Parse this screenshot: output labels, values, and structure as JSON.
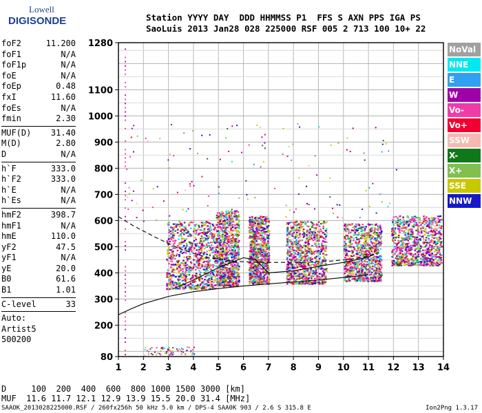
{
  "logo": {
    "line1": "Lowell",
    "line2": "DIGISONDE"
  },
  "header": {
    "labels": "Station YYYY DAY  DDD HHMMSS P1  FFS S AXN PPS IGA PS",
    "values": "SaoLuis 2013 Jan28 028 225000 RSF 005 2 713 100 10+ 22"
  },
  "params": {
    "group1": [
      {
        "name": "foF2",
        "value": "11.200"
      },
      {
        "name": "foF1",
        "value": "N/A"
      },
      {
        "name": "foF1p",
        "value": "N/A"
      },
      {
        "name": "foE",
        "value": "N/A"
      },
      {
        "name": "foEp",
        "value": "0.48"
      },
      {
        "name": "fxI",
        "value": "11.60"
      },
      {
        "name": "foEs",
        "value": "N/A"
      },
      {
        "name": "fmin",
        "value": "2.30"
      }
    ],
    "group2": [
      {
        "name": "MUF(D)",
        "value": "31.40"
      },
      {
        "name": "M(D)",
        "value": "2.80"
      },
      {
        "name": "D",
        "value": "N/A"
      }
    ],
    "group3": [
      {
        "name": "h`F",
        "value": "333.0"
      },
      {
        "name": "h`F2",
        "value": "333.0"
      },
      {
        "name": "h`E",
        "value": "N/A"
      },
      {
        "name": "h`Es",
        "value": "N/A"
      }
    ],
    "group4": [
      {
        "name": "hmF2",
        "value": "398.7"
      },
      {
        "name": "hmF1",
        "value": "N/A"
      },
      {
        "name": "hmE",
        "value": "110.0"
      },
      {
        "name": "yF2",
        "value": "47.5"
      },
      {
        "name": "yF1",
        "value": "N/A"
      },
      {
        "name": "yE",
        "value": "20.0"
      },
      {
        "name": "B0",
        "value": "61.6"
      },
      {
        "name": "B1",
        "value": "1.01"
      }
    ],
    "group5": [
      {
        "name": "C-level",
        "value": "33"
      }
    ],
    "auto": [
      "Auto:",
      "Artist5",
      "500200"
    ]
  },
  "footer": {
    "line1": "D     100  200  400  600  800 1000 1500 3000 [km]",
    "line2": "MUF  11.6 11.7 12.1 12.9 13.9 15.5 20.0 31.4 [MHz]"
  },
  "file_line": "SAAOK_2013028225000.RSF / 260fx256h 50 kHz 5.0 km / DPS-4 SAA0K 903 / 2.6 S 315.8 E",
  "version": "Ion2Png 1.3.17",
  "legend": [
    {
      "label": "NoVal",
      "color": "#a0a0a0"
    },
    {
      "label": "NNE",
      "color": "#00e8f0"
    },
    {
      "label": "E",
      "color": "#30a0f0"
    },
    {
      "label": "W",
      "color": "#a000a8"
    },
    {
      "label": "Vo-",
      "color": "#f03ca8"
    },
    {
      "label": "Vo+",
      "color": "#f00030"
    },
    {
      "label": "SSW",
      "color": "#f8b8b0"
    },
    {
      "label": "X-",
      "color": "#107818"
    },
    {
      "label": "X+",
      "color": "#80c050"
    },
    {
      "label": "SSE",
      "color": "#c8c800"
    },
    {
      "label": "NNW",
      "color": "#1818c8"
    }
  ],
  "chart_data": {
    "type": "scatter",
    "xlim": [
      1,
      14
    ],
    "ylim": [
      80,
      1280
    ],
    "x_ticks": [
      1,
      2,
      3,
      4,
      5,
      6,
      7,
      8,
      9,
      10,
      11,
      12,
      13,
      14
    ],
    "y_ticks": [
      80,
      200,
      300,
      400,
      500,
      600,
      700,
      800,
      900,
      1000,
      1100,
      1280
    ],
    "grid": true,
    "echo_clusters": [
      {
        "x": [
          2.9,
          4.9
        ],
        "y": [
          340,
          600
        ]
      },
      {
        "x": [
          4.9,
          5.8
        ],
        "y": [
          350,
          640
        ]
      },
      {
        "x": [
          6.2,
          7.0
        ],
        "y": [
          360,
          620
        ]
      },
      {
        "x": [
          7.7,
          9.3
        ],
        "y": [
          360,
          600
        ]
      },
      {
        "x": [
          10.0,
          11.5
        ],
        "y": [
          370,
          590
        ]
      },
      {
        "x": [
          11.9,
          13.9
        ],
        "y": [
          430,
          620
        ]
      }
    ],
    "lines": [
      {
        "name": "virtual-height-trace",
        "style": "solid",
        "points": [
          [
            1.0,
            240
          ],
          [
            1.5,
            262
          ],
          [
            2.0,
            282
          ],
          [
            3.0,
            310
          ],
          [
            4.0,
            328
          ],
          [
            5.0,
            340
          ],
          [
            6.0,
            350
          ],
          [
            7.0,
            358
          ],
          [
            8.0,
            365
          ],
          [
            9.0,
            373
          ],
          [
            10.0,
            382
          ],
          [
            11.0,
            393
          ]
        ]
      },
      {
        "name": "profile-trace",
        "style": "solid",
        "points": [
          [
            3.2,
            340
          ],
          [
            4.0,
            372
          ],
          [
            5.0,
            420
          ],
          [
            6.0,
            458
          ],
          [
            6.5,
            450
          ],
          [
            7.0,
            400
          ],
          [
            8.0,
            408
          ],
          [
            9.0,
            425
          ],
          [
            10.0,
            440
          ],
          [
            11.0,
            460
          ],
          [
            11.2,
            472
          ]
        ]
      },
      {
        "name": "dashed-trace",
        "style": "dashed",
        "points": [
          [
            1.0,
            615
          ],
          [
            1.6,
            580
          ],
          [
            2.5,
            535
          ],
          [
            3.5,
            490
          ],
          [
            4.5,
            460
          ],
          [
            5.5,
            445
          ],
          [
            6.5,
            440
          ],
          [
            7.5,
            440
          ],
          [
            8.5,
            440
          ],
          [
            9.5,
            445
          ],
          [
            10.5,
            455
          ],
          [
            11.3,
            470
          ]
        ]
      }
    ]
  }
}
